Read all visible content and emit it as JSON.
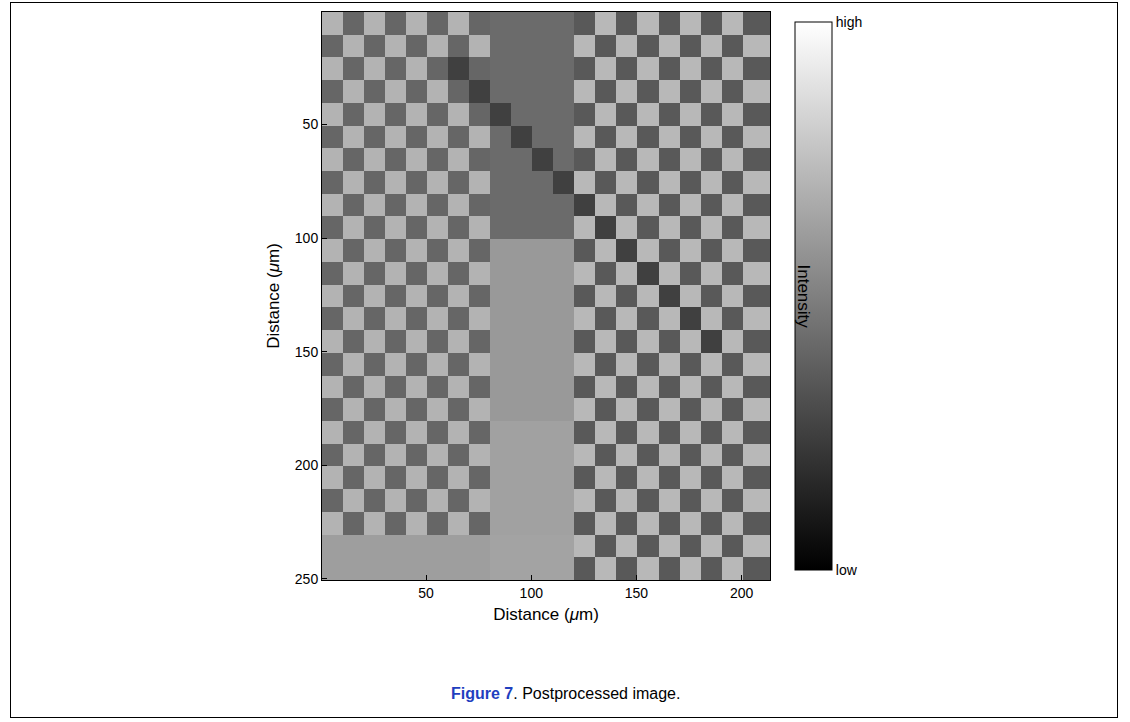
{
  "chart_data": {
    "type": "heatmap",
    "caption": {
      "label": "Figure 7",
      "text": ". Postprocessed image."
    },
    "x_label": "Distance (μm)",
    "y_label": "Distance (μm)",
    "xlim": [
      0.5,
      213.5
    ],
    "ylim": [
      250.5,
      0.5
    ],
    "xticks": [
      50,
      100,
      150,
      200
    ],
    "yticks": [
      50,
      100,
      150,
      200,
      250
    ],
    "grid": false,
    "colorbar": {
      "title": "Intensity",
      "range": [
        0,
        1
      ],
      "ticks": [
        {
          "value": 0,
          "label": "low"
        },
        {
          "value": 1,
          "label": "high"
        }
      ]
    },
    "x_edges": [
      0.5,
      10.5,
      20.5,
      30.5,
      40.5,
      50.5,
      60.5,
      70.5,
      80.5,
      90.5,
      100.5,
      110.5,
      120.5,
      130.5,
      140.5,
      150.5,
      160.5,
      170.5,
      180.5,
      190.5,
      200.5,
      213.5
    ],
    "y_edges": [
      0.5,
      10.5,
      20.5,
      30.5,
      40.5,
      50.5,
      60.5,
      70.5,
      80.5,
      90.5,
      100.5,
      110.5,
      120.5,
      130.5,
      140.5,
      150.5,
      160.5,
      170.5,
      180.5,
      190.5,
      200.5,
      210.5,
      220.5,
      230.5,
      240.5,
      250.5
    ],
    "cells": [
      [
        0.7,
        0.4,
        0.7,
        0.4,
        0.7,
        0.4,
        0.7,
        0.4,
        0.42,
        0.42,
        0.42,
        0.42,
        0.35,
        0.72,
        0.35,
        0.72,
        0.35,
        0.72,
        0.35,
        0.72,
        0.35
      ],
      [
        0.4,
        0.7,
        0.4,
        0.7,
        0.4,
        0.7,
        0.4,
        0.7,
        0.42,
        0.42,
        0.42,
        0.42,
        0.72,
        0.35,
        0.72,
        0.35,
        0.72,
        0.35,
        0.72,
        0.35,
        0.72
      ],
      [
        0.7,
        0.4,
        0.7,
        0.4,
        0.7,
        0.4,
        0.25,
        0.4,
        0.42,
        0.42,
        0.42,
        0.42,
        0.35,
        0.72,
        0.35,
        0.72,
        0.35,
        0.72,
        0.35,
        0.72,
        0.35
      ],
      [
        0.4,
        0.7,
        0.4,
        0.7,
        0.4,
        0.7,
        0.4,
        0.25,
        0.42,
        0.42,
        0.42,
        0.42,
        0.72,
        0.35,
        0.72,
        0.35,
        0.72,
        0.35,
        0.72,
        0.35,
        0.72
      ],
      [
        0.7,
        0.4,
        0.7,
        0.4,
        0.7,
        0.4,
        0.7,
        0.4,
        0.25,
        0.42,
        0.42,
        0.42,
        0.35,
        0.72,
        0.35,
        0.72,
        0.35,
        0.72,
        0.35,
        0.72,
        0.35
      ],
      [
        0.4,
        0.7,
        0.4,
        0.7,
        0.4,
        0.7,
        0.4,
        0.7,
        0.42,
        0.25,
        0.42,
        0.42,
        0.72,
        0.35,
        0.72,
        0.35,
        0.72,
        0.35,
        0.72,
        0.35,
        0.72
      ],
      [
        0.7,
        0.4,
        0.7,
        0.4,
        0.7,
        0.4,
        0.7,
        0.4,
        0.42,
        0.42,
        0.25,
        0.42,
        0.35,
        0.72,
        0.35,
        0.72,
        0.35,
        0.72,
        0.35,
        0.72,
        0.35
      ],
      [
        0.4,
        0.7,
        0.4,
        0.7,
        0.4,
        0.7,
        0.4,
        0.7,
        0.42,
        0.42,
        0.42,
        0.25,
        0.72,
        0.35,
        0.72,
        0.35,
        0.72,
        0.35,
        0.72,
        0.35,
        0.72
      ],
      [
        0.7,
        0.4,
        0.7,
        0.4,
        0.7,
        0.4,
        0.7,
        0.4,
        0.42,
        0.42,
        0.42,
        0.42,
        0.25,
        0.72,
        0.35,
        0.72,
        0.35,
        0.72,
        0.35,
        0.72,
        0.35
      ],
      [
        0.4,
        0.7,
        0.4,
        0.7,
        0.4,
        0.7,
        0.4,
        0.7,
        0.42,
        0.42,
        0.42,
        0.42,
        0.72,
        0.25,
        0.72,
        0.35,
        0.72,
        0.35,
        0.72,
        0.35,
        0.72
      ],
      [
        0.7,
        0.4,
        0.7,
        0.4,
        0.7,
        0.4,
        0.7,
        0.4,
        0.6,
        0.6,
        0.6,
        0.6,
        0.35,
        0.72,
        0.25,
        0.72,
        0.35,
        0.72,
        0.35,
        0.72,
        0.35
      ],
      [
        0.4,
        0.7,
        0.4,
        0.7,
        0.4,
        0.7,
        0.4,
        0.7,
        0.6,
        0.6,
        0.6,
        0.6,
        0.72,
        0.35,
        0.72,
        0.25,
        0.72,
        0.35,
        0.72,
        0.35,
        0.72
      ],
      [
        0.7,
        0.4,
        0.7,
        0.4,
        0.7,
        0.4,
        0.7,
        0.4,
        0.6,
        0.6,
        0.6,
        0.6,
        0.35,
        0.72,
        0.35,
        0.72,
        0.25,
        0.72,
        0.35,
        0.72,
        0.35
      ],
      [
        0.4,
        0.7,
        0.4,
        0.7,
        0.4,
        0.7,
        0.4,
        0.7,
        0.6,
        0.6,
        0.6,
        0.6,
        0.72,
        0.35,
        0.72,
        0.35,
        0.72,
        0.25,
        0.72,
        0.35,
        0.72
      ],
      [
        0.7,
        0.4,
        0.7,
        0.4,
        0.7,
        0.4,
        0.7,
        0.4,
        0.6,
        0.6,
        0.6,
        0.6,
        0.35,
        0.72,
        0.35,
        0.72,
        0.35,
        0.72,
        0.25,
        0.72,
        0.35
      ],
      [
        0.4,
        0.7,
        0.4,
        0.7,
        0.4,
        0.7,
        0.4,
        0.7,
        0.6,
        0.6,
        0.6,
        0.6,
        0.72,
        0.35,
        0.72,
        0.35,
        0.72,
        0.35,
        0.72,
        0.35,
        0.72
      ],
      [
        0.7,
        0.4,
        0.7,
        0.4,
        0.7,
        0.4,
        0.7,
        0.4,
        0.6,
        0.6,
        0.6,
        0.6,
        0.35,
        0.72,
        0.35,
        0.72,
        0.35,
        0.72,
        0.35,
        0.72,
        0.35
      ],
      [
        0.4,
        0.7,
        0.4,
        0.7,
        0.4,
        0.7,
        0.4,
        0.7,
        0.6,
        0.6,
        0.6,
        0.6,
        0.72,
        0.35,
        0.72,
        0.35,
        0.72,
        0.35,
        0.72,
        0.35,
        0.72
      ],
      [
        0.7,
        0.4,
        0.7,
        0.4,
        0.7,
        0.4,
        0.7,
        0.4,
        0.63,
        0.63,
        0.63,
        0.63,
        0.35,
        0.72,
        0.35,
        0.72,
        0.35,
        0.72,
        0.35,
        0.72,
        0.35
      ],
      [
        0.4,
        0.7,
        0.4,
        0.7,
        0.4,
        0.7,
        0.4,
        0.7,
        0.63,
        0.63,
        0.63,
        0.63,
        0.72,
        0.35,
        0.72,
        0.35,
        0.72,
        0.35,
        0.72,
        0.35,
        0.72
      ],
      [
        0.7,
        0.4,
        0.7,
        0.4,
        0.7,
        0.4,
        0.7,
        0.4,
        0.63,
        0.63,
        0.63,
        0.63,
        0.35,
        0.72,
        0.35,
        0.72,
        0.35,
        0.72,
        0.35,
        0.72,
        0.35
      ],
      [
        0.4,
        0.7,
        0.4,
        0.7,
        0.4,
        0.7,
        0.4,
        0.7,
        0.63,
        0.63,
        0.63,
        0.63,
        0.72,
        0.35,
        0.72,
        0.35,
        0.72,
        0.35,
        0.72,
        0.35,
        0.72
      ],
      [
        0.7,
        0.4,
        0.7,
        0.4,
        0.7,
        0.4,
        0.7,
        0.4,
        0.63,
        0.63,
        0.63,
        0.63,
        0.35,
        0.72,
        0.35,
        0.72,
        0.35,
        0.72,
        0.35,
        0.72,
        0.35
      ],
      [
        0.62,
        0.62,
        0.62,
        0.62,
        0.62,
        0.62,
        0.62,
        0.62,
        0.64,
        0.64,
        0.64,
        0.64,
        0.72,
        0.35,
        0.72,
        0.35,
        0.72,
        0.35,
        0.72,
        0.35,
        0.72
      ],
      [
        0.62,
        0.62,
        0.62,
        0.62,
        0.62,
        0.62,
        0.62,
        0.62,
        0.64,
        0.64,
        0.64,
        0.64,
        0.35,
        0.72,
        0.35,
        0.72,
        0.35,
        0.72,
        0.35,
        0.72,
        0.35
      ]
    ]
  }
}
